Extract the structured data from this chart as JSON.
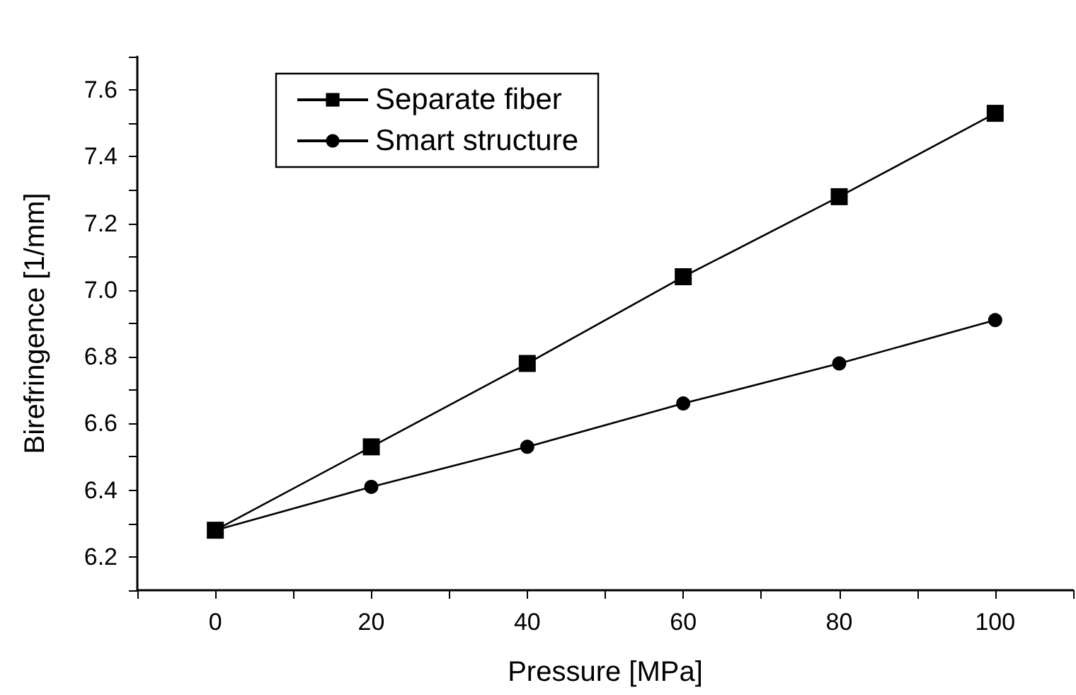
{
  "chart_data": {
    "type": "line",
    "xlabel": "Pressure [MPa]",
    "ylabel": "Birefringence [1/mm]",
    "x": [
      0,
      20,
      40,
      60,
      80,
      100
    ],
    "series": [
      {
        "name": "Separate fiber",
        "color": "#000000",
        "marker": "square",
        "values": [
          6.28,
          6.53,
          6.78,
          7.04,
          7.28,
          7.53
        ]
      },
      {
        "name": "Smart structure",
        "color": "#000000",
        "marker": "circle",
        "values": [
          6.28,
          6.41,
          6.53,
          6.66,
          6.78,
          6.91
        ]
      }
    ],
    "xlim": [
      -10,
      110
    ],
    "xticks": [
      {
        "value": -10,
        "label": null
      },
      0,
      {
        "value": 10,
        "label": null
      },
      20,
      {
        "value": 30,
        "label": null
      },
      40,
      {
        "value": 50,
        "label": null
      },
      60,
      {
        "value": 70,
        "label": null
      },
      80,
      {
        "value": 90,
        "label": null
      },
      100,
      {
        "value": 110,
        "label": null
      }
    ],
    "ylim": [
      6.1,
      7.7
    ],
    "yticks": [
      {
        "value": 6.1,
        "label": null
      },
      6.2,
      {
        "value": 6.3,
        "label": null
      },
      6.4,
      {
        "value": 6.5,
        "label": null
      },
      6.6,
      {
        "value": 6.7,
        "label": null
      },
      6.8,
      {
        "value": 6.9,
        "label": null
      },
      {
        "value": 7.0,
        "label": "7.0"
      },
      {
        "value": 7.1,
        "label": null
      },
      7.2,
      {
        "value": 7.3,
        "label": null
      },
      7.4,
      {
        "value": 7.5,
        "label": null
      },
      7.6,
      {
        "value": 7.7,
        "label": null
      }
    ],
    "grid": false,
    "legend": "top left",
    "line_style": "solid"
  }
}
